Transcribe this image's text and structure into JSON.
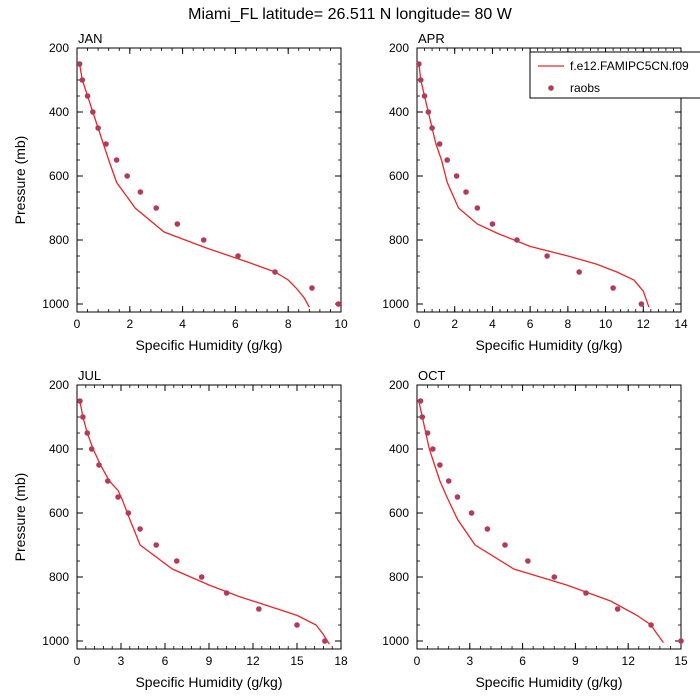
{
  "figure": {
    "title": "Miami_FL  latitude= 26.511 N longitude= 80 W"
  },
  "colors": {
    "model_line": "#e8262b",
    "raobs_marker": "#b33a5a",
    "axis": "#000000"
  },
  "legend": {
    "entries": [
      {
        "label": "f.e12.FAMIPC5CN.f09",
        "kind": "line"
      },
      {
        "label": "raobs",
        "kind": "marker"
      }
    ]
  },
  "chart_data": [
    {
      "type": "line",
      "title": "JAN",
      "xlabel": "Specific Humidity (g/kg)",
      "ylabel": "Pressure (mb)",
      "xlim": [
        0,
        10
      ],
      "xticks": [
        0,
        2,
        4,
        6,
        8,
        10
      ],
      "ylim": [
        200,
        1025
      ],
      "yticks": [
        200,
        400,
        600,
        800,
        1000
      ],
      "y_reversed": true,
      "grid": false,
      "series": [
        {
          "name": "f.e12.FAMIPC5CN.f09",
          "style": "line",
          "x": [
            0.1,
            0.2,
            0.4,
            0.6,
            0.8,
            1.0,
            1.2,
            1.5,
            2.2,
            3.3,
            4.9,
            6.5,
            7.5,
            8.0,
            8.3,
            8.6,
            8.8
          ],
          "y": [
            250,
            300,
            350,
            400,
            450,
            500,
            550,
            620,
            700,
            775,
            825,
            870,
            900,
            925,
            950,
            980,
            1010
          ]
        },
        {
          "name": "raobs",
          "style": "markers",
          "x": [
            0.1,
            0.2,
            0.4,
            0.6,
            0.8,
            1.1,
            1.5,
            1.9,
            2.4,
            3.0,
            3.8,
            4.8,
            6.1,
            7.5,
            8.9,
            9.9
          ],
          "y": [
            250,
            300,
            350,
            400,
            450,
            500,
            550,
            600,
            650,
            700,
            750,
            800,
            850,
            900,
            950,
            1000
          ]
        }
      ]
    },
    {
      "type": "line",
      "title": "APR",
      "xlabel": "Specific Humidity (g/kg)",
      "ylabel": "",
      "xlim": [
        0,
        14
      ],
      "xticks": [
        0,
        2,
        4,
        6,
        8,
        10,
        12,
        14
      ],
      "ylim": [
        200,
        1025
      ],
      "yticks": [
        200,
        400,
        600,
        800,
        1000
      ],
      "y_reversed": true,
      "grid": false,
      "series": [
        {
          "name": "f.e12.FAMIPC5CN.f09",
          "style": "line",
          "x": [
            0.1,
            0.2,
            0.4,
            0.6,
            0.8,
            1.0,
            1.3,
            1.6,
            2.2,
            3.2,
            4.3,
            6.0,
            8.0,
            9.5,
            10.6,
            11.5,
            12.0,
            12.3
          ],
          "y": [
            250,
            300,
            350,
            400,
            450,
            500,
            550,
            620,
            700,
            750,
            780,
            820,
            850,
            875,
            900,
            925,
            960,
            1010
          ]
        },
        {
          "name": "raobs",
          "style": "markers",
          "x": [
            0.1,
            0.2,
            0.4,
            0.6,
            0.8,
            1.2,
            1.6,
            2.1,
            2.6,
            3.2,
            4.0,
            5.3,
            6.9,
            8.6,
            10.4,
            11.9
          ],
          "y": [
            250,
            300,
            350,
            400,
            450,
            500,
            550,
            600,
            650,
            700,
            750,
            800,
            850,
            900,
            950,
            1000
          ]
        }
      ]
    },
    {
      "type": "line",
      "title": "JUL",
      "xlabel": "Specific Humidity (g/kg)",
      "ylabel": "Pressure (mb)",
      "xlim": [
        0,
        18
      ],
      "xticks": [
        0,
        3,
        6,
        9,
        12,
        15,
        18
      ],
      "ylim": [
        200,
        1025
      ],
      "yticks": [
        200,
        400,
        600,
        800,
        1000
      ],
      "y_reversed": true,
      "grid": false,
      "series": [
        {
          "name": "f.e12.FAMIPC5CN.f09",
          "style": "line",
          "x": [
            0.2,
            0.4,
            0.7,
            1.1,
            1.6,
            2.2,
            2.8,
            3.1,
            3.6,
            4.3,
            6.5,
            9.0,
            11.0,
            13.0,
            15.0,
            16.3,
            16.8,
            17.2
          ],
          "y": [
            250,
            300,
            350,
            400,
            450,
            500,
            530,
            560,
            620,
            700,
            775,
            825,
            860,
            890,
            920,
            950,
            980,
            1010
          ]
        },
        {
          "name": "raobs",
          "style": "markers",
          "x": [
            0.2,
            0.4,
            0.7,
            1.0,
            1.5,
            2.1,
            2.8,
            3.5,
            4.3,
            5.4,
            6.8,
            8.5,
            10.2,
            12.4,
            15.0,
            16.9
          ],
          "y": [
            250,
            300,
            350,
            400,
            450,
            500,
            550,
            600,
            650,
            700,
            750,
            800,
            850,
            900,
            950,
            1000
          ]
        }
      ]
    },
    {
      "type": "line",
      "title": "OCT",
      "xlabel": "Specific Humidity (g/kg)",
      "ylabel": "",
      "xlim": [
        0,
        15
      ],
      "xticks": [
        0,
        3,
        6,
        9,
        12,
        15
      ],
      "ylim": [
        200,
        1025
      ],
      "yticks": [
        200,
        400,
        600,
        800,
        1000
      ],
      "y_reversed": true,
      "grid": false,
      "series": [
        {
          "name": "f.e12.FAMIPC5CN.f09",
          "style": "line",
          "x": [
            0.1,
            0.3,
            0.5,
            0.7,
            1.0,
            1.3,
            1.7,
            2.3,
            3.3,
            5.5,
            8.5,
            11.0,
            12.5,
            13.3,
            13.6,
            14.0
          ],
          "y": [
            250,
            300,
            350,
            400,
            450,
            500,
            550,
            620,
            700,
            775,
            825,
            875,
            920,
            950,
            975,
            1005
          ]
        },
        {
          "name": "raobs",
          "style": "markers",
          "x": [
            0.2,
            0.3,
            0.6,
            0.9,
            1.3,
            1.8,
            2.3,
            3.1,
            4.0,
            5.0,
            6.3,
            7.8,
            9.6,
            11.4,
            13.3,
            15.0
          ],
          "y": [
            250,
            300,
            350,
            400,
            450,
            500,
            550,
            600,
            650,
            700,
            750,
            800,
            850,
            900,
            950,
            1000
          ]
        }
      ]
    }
  ]
}
